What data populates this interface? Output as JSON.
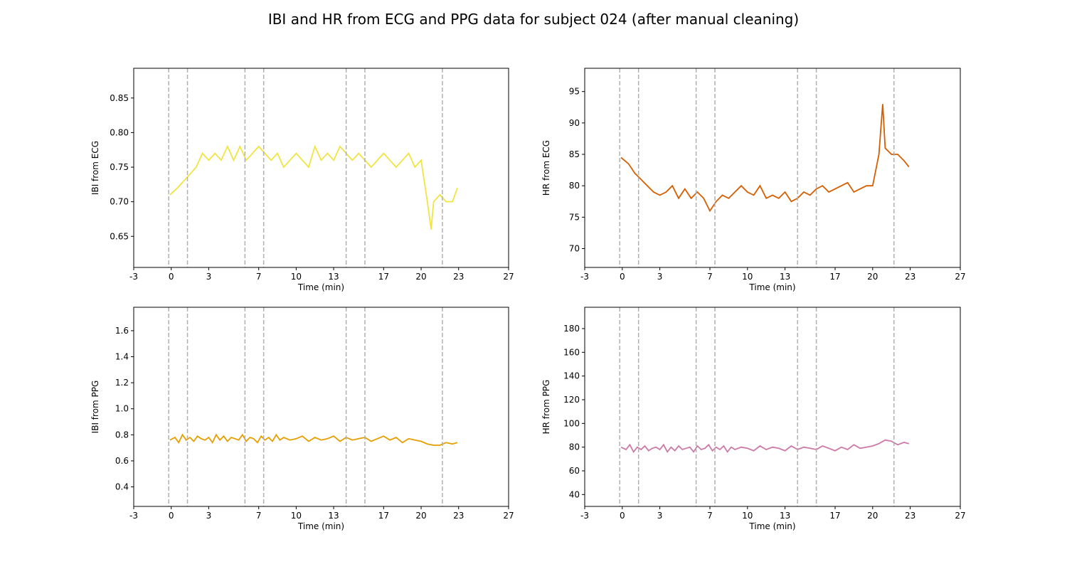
{
  "figure": {
    "title": "IBI and HR from ECG and PPG data for subject 024 (after manual cleaning)"
  },
  "markers": [
    -0.2,
    1.3,
    5.9,
    7.4,
    14.0,
    15.5,
    21.7
  ],
  "chart_data": [
    {
      "type": "line",
      "ylabel": "IBI from ECG",
      "xlabel": "Time (min)",
      "color": "#f0e442",
      "xlim": [
        -3,
        27
      ],
      "ylim": [
        0.605,
        0.893
      ],
      "xticks": [
        -3,
        0,
        3,
        7,
        10,
        13,
        17,
        20,
        23,
        27
      ],
      "yticks": [
        0.65,
        0.7,
        0.75,
        0.8,
        0.85
      ],
      "ytick_labels": [
        "0.65",
        "0.70",
        "0.75",
        "0.80",
        "0.85"
      ],
      "series": [
        {
          "x": [
            -0.1,
            0.5,
            1.0,
            1.5,
            2.0,
            2.5,
            3.0,
            3.5,
            4.0,
            4.5,
            5.0,
            5.5,
            6.0,
            6.5,
            7.0,
            7.5,
            8.0,
            8.5,
            9.0,
            9.5,
            10.0,
            10.5,
            11.0,
            11.5,
            12.0,
            12.5,
            13.0,
            13.5,
            14.0,
            14.5,
            15.0,
            15.5,
            16.0,
            16.5,
            17.0,
            17.5,
            18.0,
            18.5,
            19.0,
            19.5,
            20.0,
            20.5,
            20.8,
            21.0,
            21.5,
            22.0,
            22.5,
            22.9
          ],
          "y": [
            0.71,
            0.72,
            0.73,
            0.74,
            0.75,
            0.77,
            0.76,
            0.77,
            0.76,
            0.78,
            0.76,
            0.78,
            0.76,
            0.77,
            0.78,
            0.77,
            0.76,
            0.77,
            0.75,
            0.76,
            0.77,
            0.76,
            0.75,
            0.78,
            0.76,
            0.77,
            0.76,
            0.78,
            0.77,
            0.76,
            0.77,
            0.76,
            0.75,
            0.76,
            0.77,
            0.76,
            0.75,
            0.76,
            0.77,
            0.75,
            0.76,
            0.7,
            0.66,
            0.7,
            0.71,
            0.7,
            0.7,
            0.72
          ]
        }
      ]
    },
    {
      "type": "line",
      "ylabel": "HR from ECG",
      "xlabel": "Time (min)",
      "color": "#d55e00",
      "xlim": [
        -3,
        27
      ],
      "ylim": [
        67.0,
        98.7
      ],
      "xticks": [
        -3,
        0,
        3,
        7,
        10,
        13,
        17,
        20,
        23,
        27
      ],
      "yticks": [
        70,
        75,
        80,
        85,
        90,
        95
      ],
      "ytick_labels": [
        "70",
        "75",
        "80",
        "85",
        "90",
        "95"
      ],
      "series": [
        {
          "x": [
            -0.1,
            0.5,
            1.0,
            1.5,
            2.0,
            2.5,
            3.0,
            3.5,
            4.0,
            4.5,
            5.0,
            5.5,
            6.0,
            6.5,
            7.0,
            7.5,
            8.0,
            8.5,
            9.0,
            9.5,
            10.0,
            10.5,
            11.0,
            11.5,
            12.0,
            12.5,
            13.0,
            13.5,
            14.0,
            14.5,
            15.0,
            15.5,
            16.0,
            16.5,
            17.0,
            17.5,
            18.0,
            18.5,
            19.0,
            19.5,
            20.0,
            20.5,
            20.8,
            21.0,
            21.5,
            22.0,
            22.5,
            22.9
          ],
          "y": [
            84.5,
            83.5,
            82.0,
            81.0,
            80.0,
            79.0,
            78.5,
            79.0,
            80.0,
            78.0,
            79.5,
            78.0,
            79.0,
            78.0,
            76.0,
            77.5,
            78.5,
            78.0,
            79.0,
            80.0,
            79.0,
            78.5,
            80.0,
            78.0,
            78.5,
            78.0,
            79.0,
            77.5,
            78.0,
            79.0,
            78.5,
            79.5,
            80.0,
            79.0,
            79.5,
            80.0,
            80.5,
            79.0,
            79.5,
            80.0,
            80.0,
            85.0,
            93.0,
            86.0,
            85.0,
            85.0,
            84.0,
            83.0
          ]
        }
      ]
    },
    {
      "type": "line",
      "ylabel": "IBI from PPG",
      "xlabel": "Time (min)",
      "color": "#e69f00",
      "xlim": [
        -3,
        27
      ],
      "ylim": [
        0.25,
        1.78
      ],
      "xticks": [
        -3,
        0,
        3,
        7,
        10,
        13,
        17,
        20,
        23,
        27
      ],
      "yticks": [
        0.4,
        0.6,
        0.8,
        1.0,
        1.2,
        1.4,
        1.6
      ],
      "ytick_labels": [
        "0.4",
        "0.6",
        "0.8",
        "1.0",
        "1.2",
        "1.4",
        "1.6"
      ],
      "series": [
        {
          "x": [
            -0.1,
            0.3,
            0.6,
            0.9,
            1.2,
            1.5,
            1.8,
            2.1,
            2.4,
            2.7,
            3.0,
            3.3,
            3.6,
            3.9,
            4.2,
            4.5,
            4.8,
            5.1,
            5.4,
            5.7,
            6.0,
            6.3,
            6.6,
            6.9,
            7.2,
            7.5,
            7.8,
            8.1,
            8.4,
            8.7,
            9.0,
            9.5,
            10.0,
            10.5,
            11.0,
            11.5,
            12.0,
            12.5,
            13.0,
            13.5,
            14.0,
            14.5,
            15.0,
            15.5,
            16.0,
            16.5,
            17.0,
            17.5,
            18.0,
            18.5,
            19.0,
            19.5,
            20.0,
            20.5,
            21.0,
            21.5,
            22.0,
            22.5,
            22.9
          ],
          "y": [
            0.76,
            0.78,
            0.74,
            0.8,
            0.76,
            0.78,
            0.75,
            0.79,
            0.77,
            0.76,
            0.78,
            0.74,
            0.8,
            0.76,
            0.79,
            0.75,
            0.78,
            0.77,
            0.76,
            0.8,
            0.75,
            0.78,
            0.77,
            0.74,
            0.79,
            0.76,
            0.78,
            0.75,
            0.8,
            0.76,
            0.78,
            0.76,
            0.77,
            0.79,
            0.75,
            0.78,
            0.76,
            0.77,
            0.79,
            0.75,
            0.78,
            0.76,
            0.77,
            0.78,
            0.75,
            0.77,
            0.79,
            0.76,
            0.78,
            0.74,
            0.77,
            0.76,
            0.75,
            0.73,
            0.72,
            0.72,
            0.74,
            0.73,
            0.74
          ]
        }
      ]
    },
    {
      "type": "line",
      "ylabel": "HR from PPG",
      "xlabel": "Time (min)",
      "color": "#cc79a7",
      "xlim": [
        -3,
        27
      ],
      "ylim": [
        30,
        198
      ],
      "xticks": [
        -3,
        0,
        3,
        7,
        10,
        13,
        17,
        20,
        23,
        27
      ],
      "yticks": [
        40,
        60,
        80,
        100,
        120,
        140,
        160,
        180
      ],
      "ytick_labels": [
        "40",
        "60",
        "80",
        "100",
        "120",
        "140",
        "160",
        "180"
      ],
      "series": [
        {
          "x": [
            -0.1,
            0.3,
            0.6,
            0.9,
            1.2,
            1.5,
            1.8,
            2.1,
            2.4,
            2.7,
            3.0,
            3.3,
            3.6,
            3.9,
            4.2,
            4.5,
            4.8,
            5.1,
            5.4,
            5.7,
            6.0,
            6.3,
            6.6,
            6.9,
            7.2,
            7.5,
            7.8,
            8.1,
            8.4,
            8.7,
            9.0,
            9.5,
            10.0,
            10.5,
            11.0,
            11.5,
            12.0,
            12.5,
            13.0,
            13.5,
            14.0,
            14.5,
            15.0,
            15.5,
            16.0,
            16.5,
            17.0,
            17.5,
            18.0,
            18.5,
            19.0,
            19.5,
            20.0,
            20.5,
            21.0,
            21.5,
            22.0,
            22.5,
            22.9
          ],
          "y": [
            80,
            78,
            82,
            76,
            80,
            78,
            81,
            77,
            79,
            80,
            78,
            82,
            76,
            80,
            77,
            81,
            78,
            79,
            80,
            76,
            81,
            78,
            79,
            82,
            77,
            80,
            78,
            81,
            76,
            80,
            78,
            80,
            79,
            77,
            81,
            78,
            80,
            79,
            77,
            81,
            78,
            80,
            79,
            78,
            81,
            79,
            77,
            80,
            78,
            82,
            79,
            80,
            81,
            83,
            86,
            85,
            82,
            84,
            83
          ]
        }
      ]
    }
  ]
}
